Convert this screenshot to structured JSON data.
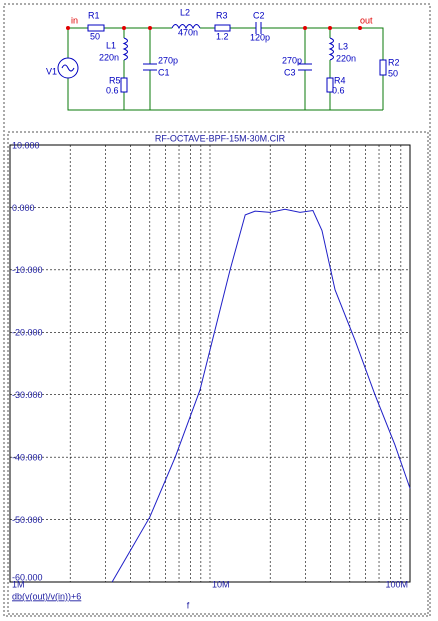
{
  "schematic": {
    "in": "in",
    "out": "out",
    "R1": {
      "name": "R1",
      "value": "50"
    },
    "L2": {
      "name": "L2",
      "value": "470n"
    },
    "R3": {
      "name": "R3",
      "value": "1.2"
    },
    "C2": {
      "name": "C2",
      "value": "120p"
    },
    "V1": {
      "name": "V1"
    },
    "L1": {
      "name": "L1",
      "value": "220n"
    },
    "R5": {
      "name": "R5",
      "value": "0.6"
    },
    "C1": {
      "name": "C1",
      "value": "270p"
    },
    "C3": {
      "name": "C3",
      "value": "270p"
    },
    "L3": {
      "name": "L3",
      "value": "220n"
    },
    "R4": {
      "name": "R4",
      "value": "0.6"
    },
    "R2": {
      "name": "R2",
      "value": "50"
    }
  },
  "chart_data": {
    "type": "line",
    "title": "RF-OCTAVE-BPF-15M-30M.CIR",
    "x_label": "f",
    "x": [
      3240000,
      5000000,
      6700000,
      8900000,
      10600000,
      12600000,
      15000000,
      16800000,
      20000000,
      23700000,
      28200000,
      32700000,
      36300000,
      42200000,
      53000000,
      66800000,
      84000000,
      100000000
    ],
    "series": [
      {
        "name": "db(v(out)/v(in))+6",
        "color": "#2020c8",
        "values": [
          -60,
          -49.6,
          -40,
          -29.3,
          -19.6,
          -10,
          -1.2,
          -0.6,
          -0.8,
          -0.3,
          -0.8,
          -0.5,
          -3.7,
          -13.2,
          -21.2,
          -30,
          -38,
          -45
        ]
      }
    ],
    "xscale": "log",
    "xlim": [
      1000000,
      100000000
    ],
    "xticks": [
      {
        "value": 1000000,
        "label": "1M"
      },
      {
        "value": 10000000,
        "label": "10M"
      },
      {
        "value": 100000000,
        "label": "100M"
      }
    ],
    "xminor_ticks": [
      2000000,
      3000000,
      4000000,
      5000000,
      6000000,
      7000000,
      8000000,
      9000000,
      20000000,
      30000000,
      40000000,
      50000000,
      60000000,
      70000000,
      80000000,
      90000000
    ],
    "ylim": [
      -60,
      10
    ],
    "yticks": [
      {
        "value": 10,
        "label": "10.000"
      },
      {
        "value": 0,
        "label": "0.000"
      },
      {
        "value": -10,
        "label": "-10.000"
      },
      {
        "value": -20,
        "label": "-20.000"
      },
      {
        "value": -30,
        "label": "-30.000"
      },
      {
        "value": -40,
        "label": "-40.000"
      },
      {
        "value": -50,
        "label": "-50.000"
      },
      {
        "value": -60,
        "label": "-60.000"
      }
    ],
    "grid": true
  }
}
